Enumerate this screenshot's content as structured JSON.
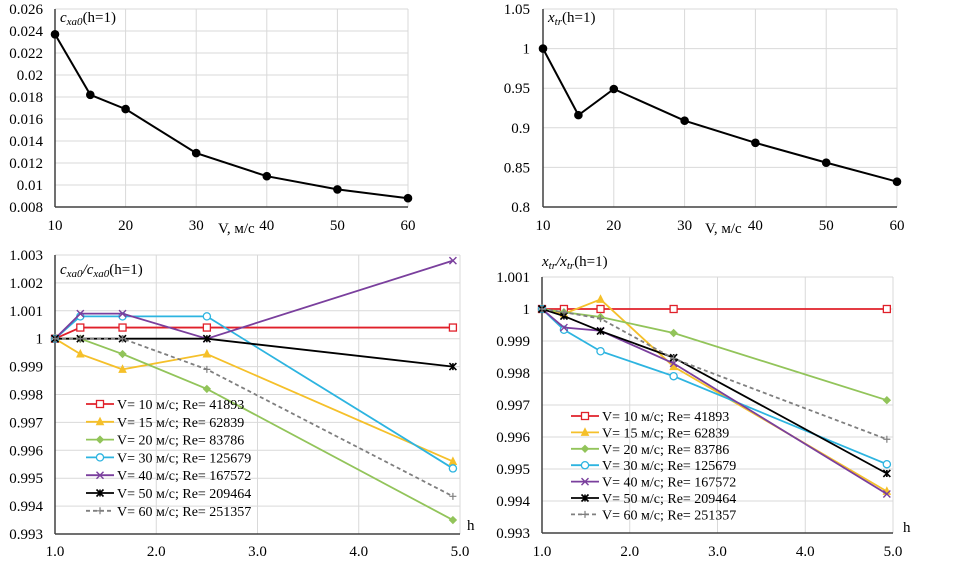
{
  "chart_data": [
    {
      "id": "top-left",
      "type": "line",
      "title": "c_xa0(h=1)",
      "title_main": "c",
      "title_sub": "xa0",
      "title_rest": "(h=1)",
      "xlabel": "V, м/с",
      "ylabel": "",
      "x": [
        10,
        15,
        20,
        30,
        40,
        50,
        60
      ],
      "xticks": [
        "10",
        "20",
        "30",
        "40",
        "50",
        "60"
      ],
      "xtick_values": [
        10,
        20,
        30,
        40,
        50,
        60
      ],
      "xlim": [
        10,
        60
      ],
      "ylim": [
        0.008,
        0.026
      ],
      "yticks": [
        "0.008",
        "0.01",
        "0.012",
        "0.014",
        "0.016",
        "0.018",
        "0.02",
        "0.022",
        "0.024",
        "0.026"
      ],
      "ytick_values": [
        0.008,
        0.01,
        0.012,
        0.014,
        0.016,
        0.018,
        0.02,
        0.022,
        0.024,
        0.026
      ],
      "grid": true,
      "series": [
        {
          "name": "c_xa0(h=1)",
          "color": "#000000",
          "marker": "circle",
          "values": [
            0.0237,
            0.0182,
            0.0169,
            0.0129,
            0.0108,
            0.0096,
            0.0088
          ]
        }
      ]
    },
    {
      "id": "top-right",
      "type": "line",
      "title": "x_tr(h=1)",
      "title_main": "x",
      "title_sub": "tr",
      "title_rest": "(h=1)",
      "xlabel": "V, м/с",
      "ylabel": "",
      "x": [
        10,
        15,
        20,
        30,
        40,
        50,
        60
      ],
      "xticks": [
        "10",
        "20",
        "30",
        "40",
        "50",
        "60"
      ],
      "xtick_values": [
        10,
        20,
        30,
        40,
        50,
        60
      ],
      "xlim": [
        10,
        60
      ],
      "ylim": [
        0.8,
        1.05
      ],
      "yticks": [
        "0.8",
        "0.85",
        "0.9",
        "0.95",
        "1",
        "1.05"
      ],
      "ytick_values": [
        0.8,
        0.85,
        0.9,
        0.95,
        1.0,
        1.05
      ],
      "grid": true,
      "series": [
        {
          "name": "x_tr(h=1)",
          "color": "#000000",
          "marker": "circle",
          "values": [
            1.0,
            0.916,
            0.949,
            0.909,
            0.881,
            0.856,
            0.832
          ]
        }
      ]
    },
    {
      "id": "bottom-left",
      "type": "line",
      "title": "c_xa0/c_xa0(h=1)",
      "title_main": "c",
      "title_sub": "xa0",
      "title_mid": "/c",
      "title_sub2": "xa0",
      "title_rest": "(h=1)",
      "xlabel": "h",
      "ylabel": "",
      "x": [
        1.0,
        1.25,
        1.667,
        2.5,
        4.93
      ],
      "xticks": [
        "1.0",
        "2.0",
        "3.0",
        "4.0",
        "5.0"
      ],
      "xtick_values": [
        1,
        2,
        3,
        4,
        5
      ],
      "xlim": [
        1.0,
        5.0
      ],
      "ylim": [
        0.993,
        1.003
      ],
      "yticks": [
        "0.993",
        "0.994",
        "0.995",
        "0.996",
        "0.997",
        "0.998",
        "0.999",
        "1",
        "1.001",
        "1.002",
        "1.003"
      ],
      "ytick_values": [
        0.993,
        0.994,
        0.995,
        0.996,
        0.997,
        0.998,
        0.999,
        1.0,
        1.001,
        1.002,
        1.003
      ],
      "grid": true,
      "legend": "center-left",
      "series": [
        {
          "name": "V= 10 м/с; Re= 41893",
          "color": "#e0202a",
          "marker": "square",
          "dash": false,
          "values": [
            1.0,
            1.0004,
            1.0004,
            1.0004,
            1.0004
          ]
        },
        {
          "name": "V= 15 м/с; Re= 62839",
          "color": "#f5c02a",
          "marker": "triangle",
          "dash": false,
          "values": [
            1.0,
            0.99945,
            0.9989,
            0.99945,
            0.9956
          ]
        },
        {
          "name": "V= 20 м/с; Re= 83786",
          "color": "#92c45a",
          "marker": "diamond",
          "dash": false,
          "values": [
            1.0,
            1.0,
            0.99945,
            0.9982,
            0.9935
          ]
        },
        {
          "name": "V= 30 м/с; Re= 125679",
          "color": "#2db4e0",
          "marker": "circle-open",
          "dash": false,
          "values": [
            1.0,
            1.0008,
            1.0008,
            1.0008,
            0.99535
          ]
        },
        {
          "name": "V= 40 м/с; Re= 167572",
          "color": "#7a3f9d",
          "marker": "x",
          "dash": false,
          "values": [
            1.0,
            1.0009,
            1.0009,
            1.0,
            1.0028
          ]
        },
        {
          "name": "V= 50 м/с; Re= 209464",
          "color": "#000000",
          "marker": "star",
          "dash": false,
          "values": [
            1.0,
            1.0,
            1.0,
            1.0,
            0.999
          ]
        },
        {
          "name": "V= 60 м/с; Re= 251357",
          "color": "#7f7f7f",
          "marker": "plus",
          "dash": true,
          "values": [
            1.0,
            1.0,
            1.0,
            0.9989,
            0.99435
          ]
        }
      ]
    },
    {
      "id": "bottom-right",
      "type": "line",
      "title": "x_tr/x_tr(h=1)",
      "title_main": "x",
      "title_sub": "tr",
      "title_mid": "/x",
      "title_sub2": "tr",
      "title_rest": "(h=1)",
      "xlabel": "h",
      "ylabel": "",
      "x": [
        1.0,
        1.25,
        1.667,
        2.5,
        4.93
      ],
      "xticks": [
        "1.0",
        "2.0",
        "3.0",
        "4.0",
        "5.0"
      ],
      "xtick_values": [
        1,
        2,
        3,
        4,
        5
      ],
      "xlim": [
        1.0,
        5.0
      ],
      "ylim": [
        0.993,
        1.001
      ],
      "yticks": [
        "0.993",
        "0.994",
        "0.995",
        "0.996",
        "0.997",
        "0.998",
        "0.999",
        "1",
        "1.001"
      ],
      "ytick_values": [
        0.993,
        0.994,
        0.995,
        0.996,
        0.997,
        0.998,
        0.999,
        1.0,
        1.001
      ],
      "grid": true,
      "legend": "bottom-left",
      "series": [
        {
          "name": "V= 10 м/с; Re= 41893",
          "color": "#e0202a",
          "marker": "square",
          "dash": false,
          "values": [
            1.0,
            1.0,
            1.0,
            1.0,
            1.0
          ]
        },
        {
          "name": "V= 15 м/с; Re= 62839",
          "color": "#f5c02a",
          "marker": "triangle",
          "dash": false,
          "values": [
            1.0,
            0.99985,
            1.0003,
            0.9982,
            0.9943
          ]
        },
        {
          "name": "V= 20 м/с; Re= 83786",
          "color": "#92c45a",
          "marker": "diamond",
          "dash": false,
          "values": [
            1.0,
            0.9999,
            0.99975,
            0.99925,
            0.99715
          ]
        },
        {
          "name": "V= 30 м/с; Re= 125679",
          "color": "#2db4e0",
          "marker": "circle-open",
          "dash": false,
          "values": [
            1.0,
            0.99935,
            0.99868,
            0.9979,
            0.99515
          ]
        },
        {
          "name": "V= 40 м/с; Re= 167572",
          "color": "#7a3f9d",
          "marker": "x",
          "dash": false,
          "values": [
            1.0,
            0.99942,
            0.99932,
            0.9983,
            0.99422
          ]
        },
        {
          "name": "V= 50 м/с; Re= 209464",
          "color": "#000000",
          "marker": "star",
          "dash": false,
          "values": [
            1.0,
            0.99978,
            0.99931,
            0.99848,
            0.99486
          ]
        },
        {
          "name": "V= 60 м/с; Re= 251357",
          "color": "#7f7f7f",
          "marker": "plus",
          "dash": true,
          "values": [
            1.0,
            0.9999,
            0.9997,
            0.99845,
            0.99593
          ]
        }
      ]
    }
  ]
}
